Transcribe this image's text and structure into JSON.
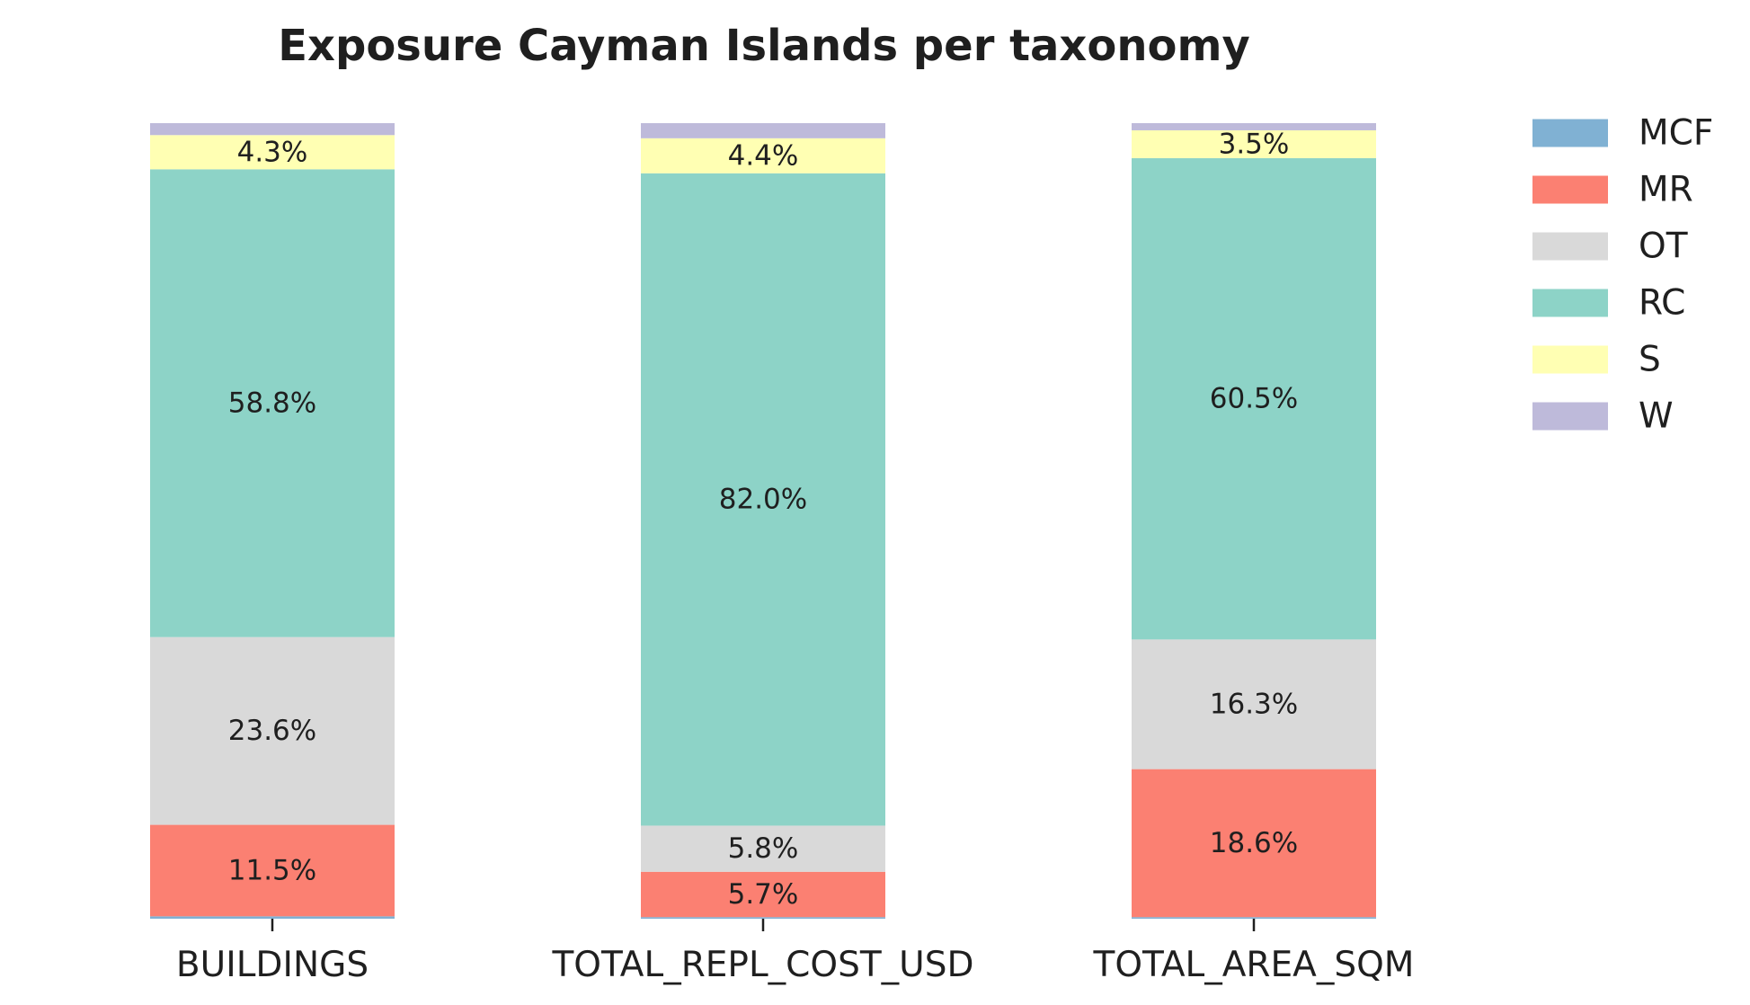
{
  "chart_data": {
    "type": "bar",
    "stacked": true,
    "title": "Exposure Cayman Islands per taxonomy",
    "xlabel": "",
    "ylabel": "",
    "ylim": [
      0,
      100
    ],
    "grid": false,
    "legend_position": "right",
    "categories": [
      "BUILDINGS",
      "TOTAL_REPL_COST_USD",
      "TOTAL_AREA_SQM"
    ],
    "series": [
      {
        "name": "MCF",
        "color": "#80b1d3",
        "values": [
          0.3,
          0.2,
          0.2
        ],
        "labels": [
          "",
          "",
          ""
        ]
      },
      {
        "name": "MR",
        "color": "#fb8072",
        "values": [
          11.5,
          5.7,
          18.6
        ],
        "labels": [
          "11.5%",
          "5.7%",
          "18.6%"
        ]
      },
      {
        "name": "OT",
        "color": "#d9d9d9",
        "values": [
          23.6,
          5.8,
          16.3
        ],
        "labels": [
          "23.6%",
          "5.8%",
          "16.3%"
        ]
      },
      {
        "name": "RC",
        "color": "#8dd3c7",
        "values": [
          58.8,
          82.0,
          60.5
        ],
        "labels": [
          "58.8%",
          "82.0%",
          "60.5%"
        ]
      },
      {
        "name": "S",
        "color": "#ffffb3",
        "values": [
          4.3,
          4.4,
          3.5
        ],
        "labels": [
          "4.3%",
          "4.4%",
          "3.5%"
        ]
      },
      {
        "name": "W",
        "color": "#bebada",
        "values": [
          1.5,
          1.9,
          0.9
        ],
        "labels": [
          "",
          "",
          ""
        ]
      }
    ]
  }
}
